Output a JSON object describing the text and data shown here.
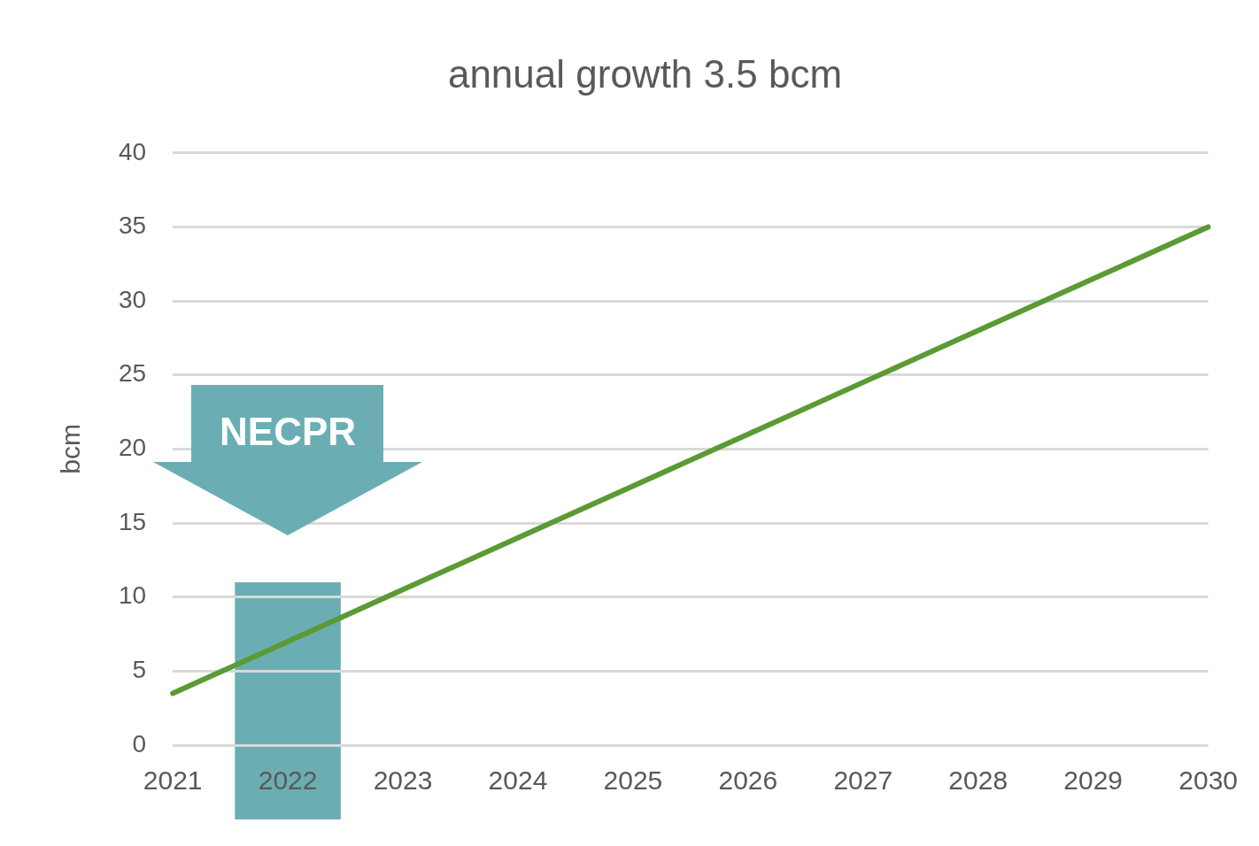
{
  "chart_data": {
    "type": "line",
    "title": "annual growth 3.5 bcm",
    "ylabel": "bcm",
    "categories": [
      "2021",
      "2022",
      "2023",
      "2024",
      "2025",
      "2026",
      "2027",
      "2028",
      "2029",
      "2030"
    ],
    "series": [
      {
        "color": "#5b9a34",
        "values": [
          3.5,
          7,
          10.5,
          14,
          17.5,
          21,
          24.5,
          28,
          31.5,
          35
        ]
      }
    ],
    "ylim": [
      0,
      40
    ],
    "yticks": [
      0,
      5,
      10,
      15,
      20,
      25,
      30,
      35,
      40
    ],
    "grid": "y",
    "legend": false,
    "marker": "none",
    "line_style": "solid",
    "bands": [
      {
        "axis": "x",
        "from": "2022",
        "to": "2022",
        "color": "#6aaeb3"
      }
    ],
    "annotations": [
      "NECPR"
    ]
  }
}
